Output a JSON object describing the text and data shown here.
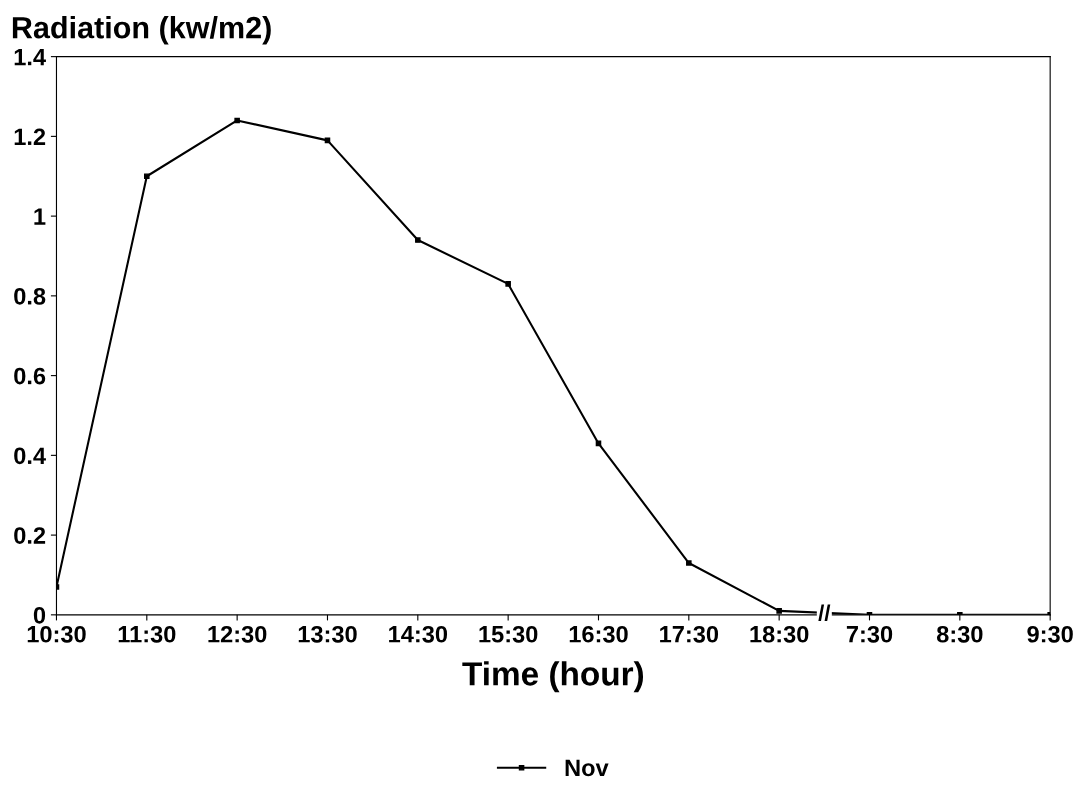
{
  "chart_data": {
    "type": "line",
    "ylabel": "Radiation (kw/m2)",
    "xlabel": "Time (hour)",
    "categories": [
      "10:30",
      "11:30",
      "12:30",
      "13:30",
      "14:30",
      "15:30",
      "16:30",
      "17:30",
      "18:30",
      "7:30",
      "8:30",
      "9:30"
    ],
    "series": [
      {
        "name": "Nov",
        "color": "#000000",
        "values": [
          0.07,
          1.1,
          1.24,
          1.19,
          0.94,
          0.83,
          0.43,
          0.13,
          0.01,
          0,
          0,
          0
        ]
      }
    ],
    "ylim": [
      0,
      1.4
    ],
    "yticks": [
      0,
      0.2,
      0.4,
      0.6,
      0.8,
      1,
      1.2,
      1.4
    ],
    "annotations": [
      "//"
    ],
    "grid": false,
    "legend": "bottom",
    "marker": "square",
    "line_style": "solid"
  }
}
